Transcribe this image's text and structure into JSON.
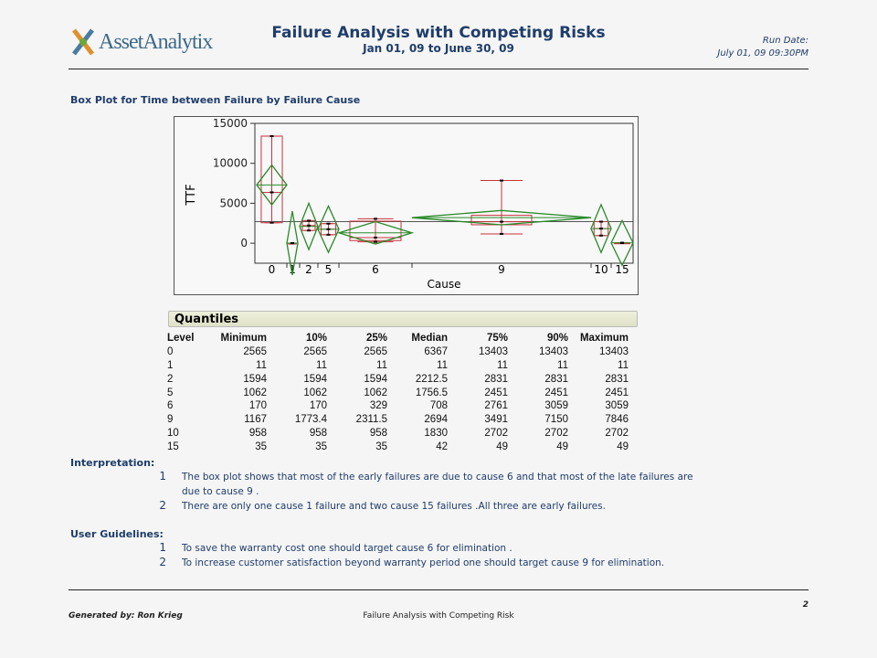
{
  "header": {
    "logo_text": "AssetAnalytix",
    "title": "Failure Analysis with Competing Risks",
    "date_range": "Jan 01, 09 to June 30, 09",
    "run_date_label": "Run Date:",
    "run_date": "July 01, 09  09:30PM"
  },
  "section_title": "Box Plot for Time between Failure by Failure Cause",
  "chart_data": {
    "type": "box",
    "xlabel": "Cause",
    "ylabel": "TTF",
    "ylim": [
      -2500,
      15000
    ],
    "yticks": [
      "15000",
      "10000",
      "5000",
      "0"
    ],
    "yticks_values": [
      15000,
      10000,
      5000,
      0
    ],
    "categories": [
      "0",
      "1",
      "2",
      "5",
      "6",
      "9",
      "10",
      "15"
    ],
    "grand_mean": 2700,
    "means": [
      7300,
      11,
      2100,
      1750,
      1300,
      3200,
      1830,
      42
    ],
    "series": [
      {
        "min": 2565,
        "q25": 2565,
        "median": 6367,
        "q75": 13403,
        "max": 13403
      },
      {
        "min": 11,
        "q25": 11,
        "median": 11,
        "q75": 11,
        "max": 11
      },
      {
        "min": 1594,
        "q25": 1594,
        "median": 2212.5,
        "q75": 2831,
        "max": 2831
      },
      {
        "min": 1062,
        "q25": 1062,
        "median": 1756.5,
        "q75": 2451,
        "max": 2451
      },
      {
        "min": 170,
        "q25": 329,
        "median": 708,
        "q75": 2761,
        "max": 3059
      },
      {
        "min": 1167,
        "q25": 2311.5,
        "median": 2694,
        "q75": 3491,
        "max": 7846
      },
      {
        "min": 958,
        "q25": 958,
        "median": 1830,
        "q75": 2702,
        "max": 2702
      },
      {
        "min": 35,
        "q25": 35,
        "median": 42,
        "q75": 49,
        "max": 49
      }
    ],
    "colors": {
      "box": "#c8323c",
      "diamond": "#2a8a2a"
    }
  },
  "quantiles": {
    "title": "Quantiles",
    "columns": [
      "Level",
      "Minimum",
      "10%",
      "25%",
      "Median",
      "75%",
      "90%",
      "Maximum"
    ],
    "rows": [
      [
        "0",
        "2565",
        "2565",
        "2565",
        "6367",
        "13403",
        "13403",
        "13403"
      ],
      [
        "1",
        "11",
        "11",
        "11",
        "11",
        "11",
        "11",
        "11"
      ],
      [
        "2",
        "1594",
        "1594",
        "1594",
        "2212.5",
        "2831",
        "2831",
        "2831"
      ],
      [
        "5",
        "1062",
        "1062",
        "1062",
        "1756.5",
        "2451",
        "2451",
        "2451"
      ],
      [
        "6",
        "170",
        "170",
        "329",
        "708",
        "2761",
        "3059",
        "3059"
      ],
      [
        "9",
        "1167",
        "1773.4",
        "2311.5",
        "2694",
        "3491",
        "7150",
        "7846"
      ],
      [
        "10",
        "958",
        "958",
        "958",
        "1830",
        "2702",
        "2702",
        "2702"
      ],
      [
        "15",
        "35",
        "35",
        "35",
        "42",
        "49",
        "49",
        "49"
      ]
    ]
  },
  "interpretation": {
    "label": "Interpretation:",
    "items": [
      {
        "n": "1",
        "text": "The box plot shows that most of the early failures are due to cause 6 and that most of the late failures are due to cause 9 ."
      },
      {
        "n": "2",
        "text": "There are only one cause 1 failure and two cause 15 failures .All three are early failures."
      }
    ]
  },
  "guidelines": {
    "label": "User Guidelines:",
    "items": [
      {
        "n": "1",
        "text": "To save the warranty cost one should target cause 6 for elimination ."
      },
      {
        "n": "2",
        "text": "To increase customer satisfaction beyond warranty period one should target cause 9 for elimination."
      }
    ]
  },
  "footer": {
    "generated": "Generated by: Ron Krieg",
    "center": "Failure Analysis with Competing Risk",
    "page": "2"
  }
}
